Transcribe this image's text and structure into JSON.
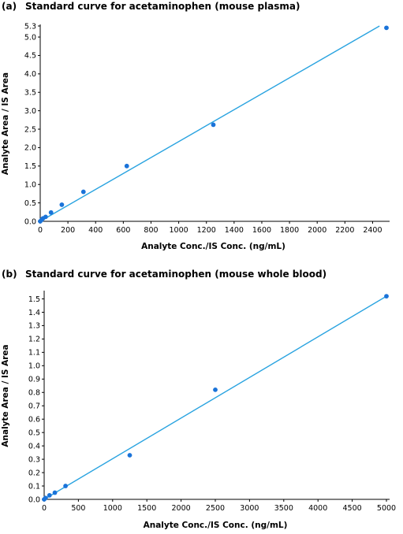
{
  "chart_data": [
    {
      "type": "scatter",
      "panel_label": "(a)",
      "title": "Standard curve for acetaminophen (mouse plasma)",
      "xlabel": "Analyte Conc./IS Conc. (ng/mL)",
      "ylabel": "Analyte Area / IS Area",
      "xlim": [
        0,
        2500
      ],
      "ylim": [
        0,
        5.3
      ],
      "x_ticks": [
        "0",
        "200",
        "400",
        "600",
        "800",
        "1000",
        "1200",
        "1400",
        "1600",
        "1800",
        "2000",
        "2200",
        "2400"
      ],
      "y_ticks": [
        "0.0",
        "0.5",
        "1.0",
        "1.5",
        "2.0",
        "2.5",
        "3.0",
        "3.5",
        "4.0",
        "4.5",
        "5.0",
        "5.3"
      ],
      "grid": false,
      "point_color": "#1a73d9",
      "line_color": "#29a3e0",
      "series": [
        {
          "x": [
            0,
            10,
            20,
            39,
            78,
            156,
            312,
            625,
            1250,
            2500
          ],
          "y": [
            0.0,
            0.04,
            0.08,
            0.12,
            0.24,
            0.45,
            0.8,
            1.5,
            2.62,
            5.25
          ]
        }
      ],
      "fit_line": {
        "x": [
          0,
          2450
        ],
        "y": [
          0.0,
          5.3
        ]
      }
    },
    {
      "type": "scatter",
      "panel_label": "(b)",
      "title": "Standard curve for acetaminophen (mouse whole blood)",
      "xlabel": "Analyte Conc./IS Conc. (ng/mL)",
      "ylabel": "Analyte Area / IS Area",
      "xlim": [
        0,
        5000
      ],
      "ylim": [
        0,
        1.55
      ],
      "x_ticks": [
        "0",
        "500",
        "1000",
        "1500",
        "2000",
        "2500",
        "3000",
        "3500",
        "4000",
        "4500",
        "5000"
      ],
      "y_ticks": [
        "0.0",
        "0.1",
        "0.2",
        "0.3",
        "0.4",
        "0.5",
        "0.6",
        "0.7",
        "0.8",
        "0.9",
        "1.0",
        "1.1",
        "1.2",
        "1.3",
        "1.4",
        "1.5"
      ],
      "grid": false,
      "point_color": "#1a73d9",
      "line_color": "#29a3e0",
      "series": [
        {
          "x": [
            0,
            20,
            78,
            156,
            312,
            1250,
            2500,
            5000
          ],
          "y": [
            0.0,
            0.01,
            0.03,
            0.05,
            0.1,
            0.33,
            0.82,
            1.52
          ]
        }
      ],
      "fit_line": {
        "x": [
          0,
          5000
        ],
        "y": [
          0.0,
          1.52
        ]
      }
    }
  ]
}
